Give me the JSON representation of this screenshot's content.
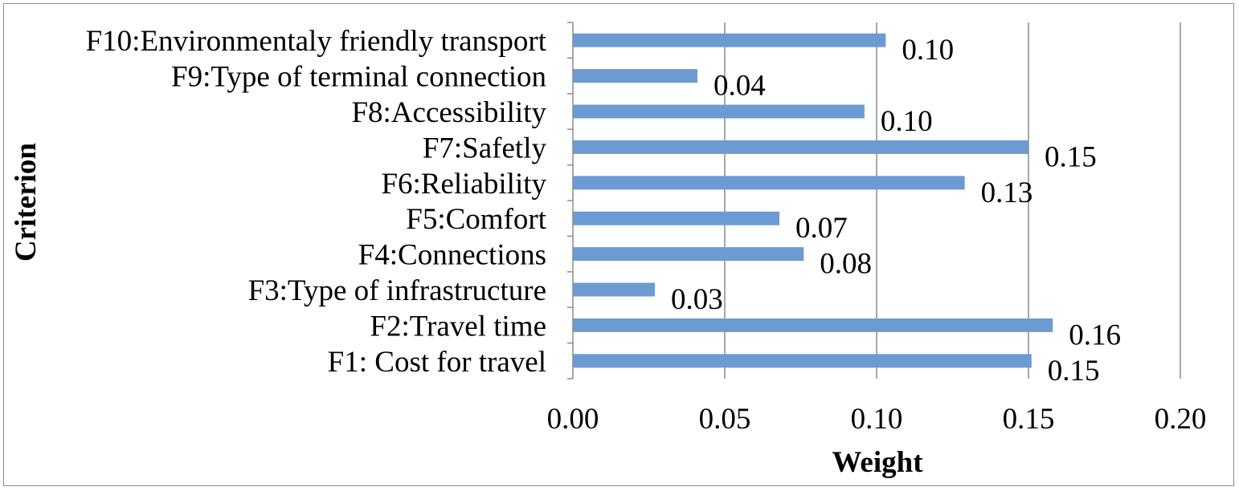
{
  "chart_data": {
    "type": "bar",
    "orientation": "horizontal",
    "categories": [
      "F1: Cost for travel",
      "F2:Travel time",
      "F3:Type of infrastructure",
      "F4:Connections",
      "F5:Comfort",
      "F6:Reliability",
      "F7:Safetly",
      "F8:Accessibility",
      "F9:Type of terminal  connection",
      "F10:Environmentaly friendly transport"
    ],
    "values": [
      0.151,
      0.158,
      0.027,
      0.076,
      0.068,
      0.129,
      0.15,
      0.096,
      0.041,
      0.103
    ],
    "data_labels": [
      "0.15",
      "0.16",
      "0.03",
      "0.08",
      "0.07",
      "0.13",
      "0.15",
      "0.10",
      "0.04",
      "0.10"
    ],
    "xlabel": "Weight",
    "ylabel": "Criterion",
    "xlim": [
      0,
      0.2
    ],
    "x_ticks": [
      "0.00",
      "0.05",
      "0.10",
      "0.15",
      "0.20"
    ],
    "grid": "vertical",
    "legend": "none",
    "colors": {
      "bar": "#6b9bd2",
      "grid": "#8c8c8c",
      "axis": "#8c8c8c",
      "frame": "#8c8c8c"
    }
  }
}
